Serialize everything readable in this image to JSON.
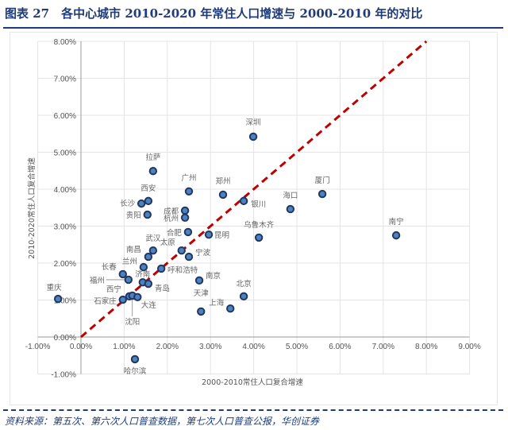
{
  "header": {
    "title": "图表 27　各中心城市 2010-2020 年常住人口增速与 2000-2010 年的对比"
  },
  "footer": {
    "source": "资料来源：第五次、第六次人口普查数据，第七次人口普查公报，华创证券"
  },
  "chart_data": {
    "type": "scatter",
    "xlabel": "2000-2010常住人口复合增速",
    "ylabel": "2010-2020常住人口复合增速",
    "xlim": [
      -1,
      9
    ],
    "ylim": [
      -1,
      8
    ],
    "x_ticks": [
      "-1.00%",
      "0.00%",
      "1.00%",
      "2.00%",
      "3.00%",
      "4.00%",
      "5.00%",
      "6.00%",
      "7.00%",
      "8.00%",
      "9.00%"
    ],
    "y_ticks": [
      "-1.00%",
      "0.00%",
      "1.00%",
      "2.00%",
      "3.00%",
      "4.00%",
      "5.00%",
      "6.00%",
      "7.00%",
      "8.00%"
    ],
    "grid": true,
    "reference_line": {
      "from": [
        0,
        0
      ],
      "to": [
        8,
        8
      ],
      "style": "dashed",
      "color": "#c00000"
    },
    "marker_fill": "#4f81bd",
    "marker_stroke": "#1f3864",
    "points": [
      {
        "label": "深圳",
        "x": 3.99,
        "y": 5.42
      },
      {
        "label": "拉萨",
        "x": 1.67,
        "y": 4.49
      },
      {
        "label": "广州",
        "x": 2.5,
        "y": 3.94
      },
      {
        "label": "郑州",
        "x": 3.29,
        "y": 3.85
      },
      {
        "label": "银川",
        "x": 3.77,
        "y": 3.68
      },
      {
        "label": "厦门",
        "x": 5.59,
        "y": 3.87
      },
      {
        "label": "海口",
        "x": 4.85,
        "y": 3.46
      },
      {
        "label": "南宁",
        "x": 7.3,
        "y": 2.75
      },
      {
        "label": "西安",
        "x": 1.56,
        "y": 3.68
      },
      {
        "label": "长沙",
        "x": 1.4,
        "y": 3.61
      },
      {
        "label": "贵阳",
        "x": 1.54,
        "y": 3.31
      },
      {
        "label": "成都",
        "x": 2.41,
        "y": 3.42
      },
      {
        "label": "杭州",
        "x": 2.41,
        "y": 3.23
      },
      {
        "label": "合肥",
        "x": 2.48,
        "y": 2.84
      },
      {
        "label": "昆明",
        "x": 2.96,
        "y": 2.77
      },
      {
        "label": "乌鲁木齐",
        "x": 4.12,
        "y": 2.69
      },
      {
        "label": "太原",
        "x": 2.33,
        "y": 2.34
      },
      {
        "label": "宁波",
        "x": 2.5,
        "y": 2.17
      },
      {
        "label": "武汉",
        "x": 1.67,
        "y": 2.34
      },
      {
        "label": "南昌",
        "x": 1.56,
        "y": 2.17
      },
      {
        "label": "兰州",
        "x": 1.45,
        "y": 1.89
      },
      {
        "label": "呼和浩特",
        "x": 1.86,
        "y": 1.85
      },
      {
        "label": "长春",
        "x": 0.97,
        "y": 1.7
      },
      {
        "label": "福州",
        "x": 1.1,
        "y": 1.55
      },
      {
        "label": "济南",
        "x": 1.43,
        "y": 1.48
      },
      {
        "label": "青岛",
        "x": 1.56,
        "y": 1.44
      },
      {
        "label": "南京",
        "x": 2.74,
        "y": 1.53
      },
      {
        "label": "北京",
        "x": 3.77,
        "y": 1.1
      },
      {
        "label": "上海",
        "x": 3.46,
        "y": 0.77
      },
      {
        "label": "天津",
        "x": 2.78,
        "y": 0.69
      },
      {
        "label": "重庆",
        "x": -0.53,
        "y": 1.03
      },
      {
        "label": "西宁",
        "x": 1.12,
        "y": 1.1
      },
      {
        "label": "石家庄",
        "x": 0.97,
        "y": 1.01
      },
      {
        "label": "沈阳",
        "x": 1.19,
        "y": 1.12
      },
      {
        "label": "大连",
        "x": 1.31,
        "y": 1.08
      },
      {
        "label": "哈尔滨",
        "x": 1.25,
        "y": -0.6
      }
    ]
  }
}
